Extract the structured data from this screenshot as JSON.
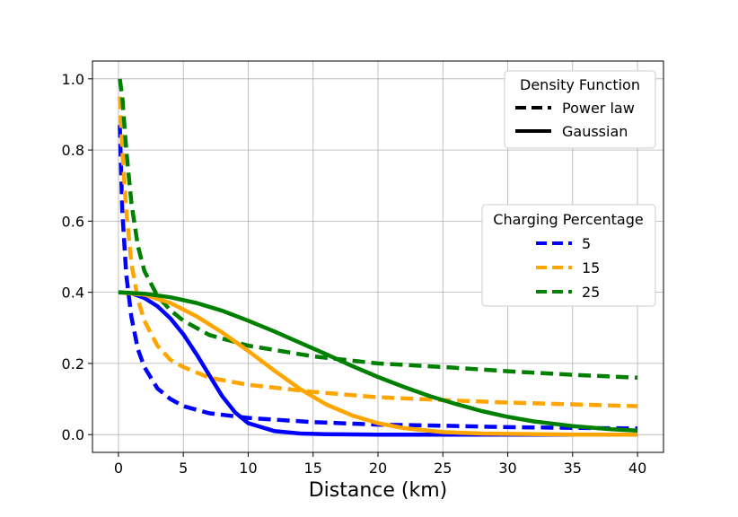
{
  "chart_data": {
    "type": "line",
    "xlabel": "Distance (km)",
    "ylabel": "",
    "xlim": [
      -2,
      42
    ],
    "ylim": [
      -0.05,
      1.05
    ],
    "x_ticks": [
      0,
      5,
      10,
      15,
      20,
      25,
      30,
      35,
      40
    ],
    "y_ticks": [
      0.0,
      0.2,
      0.4,
      0.6,
      0.8,
      1.0
    ],
    "x_tick_labels": [
      "0",
      "5",
      "10",
      "15",
      "20",
      "25",
      "30",
      "35",
      "40"
    ],
    "y_tick_labels": [
      "0.0",
      "0.2",
      "0.4",
      "0.6",
      "0.8",
      "1.0"
    ],
    "grid": true,
    "colors": {
      "5": "#0000ff",
      "15": "#ffa500",
      "25": "#008000"
    },
    "legend_density": {
      "title": "Density Function",
      "placement": "top-right",
      "entries": [
        {
          "label": "Power law",
          "style": "dashed"
        },
        {
          "label": "Gaussian",
          "style": "solid"
        }
      ]
    },
    "legend_charging": {
      "title": "Charging Percentage",
      "placement": "center-right",
      "entries": [
        {
          "label": "5",
          "color": "#0000ff"
        },
        {
          "label": "15",
          "color": "#ffa500"
        },
        {
          "label": "25",
          "color": "#008000"
        }
      ]
    },
    "series": [
      {
        "charging": "5",
        "density": "Power law",
        "x": [
          0.1,
          0.3,
          0.6,
          1,
          1.5,
          2,
          3,
          4,
          5,
          7,
          10,
          15,
          20,
          25,
          30,
          35,
          40
        ],
        "y": [
          0.87,
          0.63,
          0.45,
          0.33,
          0.24,
          0.19,
          0.13,
          0.1,
          0.08,
          0.06,
          0.047,
          0.035,
          0.028,
          0.025,
          0.021,
          0.019,
          0.017
        ]
      },
      {
        "charging": "15",
        "density": "Power law",
        "x": [
          0.1,
          0.3,
          0.6,
          1,
          1.5,
          2,
          3,
          4,
          5,
          7,
          10,
          15,
          20,
          25,
          30,
          35,
          40
        ],
        "y": [
          0.95,
          0.8,
          0.63,
          0.48,
          0.38,
          0.32,
          0.25,
          0.21,
          0.19,
          0.16,
          0.14,
          0.12,
          0.105,
          0.097,
          0.09,
          0.085,
          0.08
        ]
      },
      {
        "charging": "25",
        "density": "Power law",
        "x": [
          0.1,
          0.3,
          0.6,
          1,
          1.5,
          2,
          3,
          4,
          5,
          7,
          10,
          15,
          20,
          25,
          30,
          35,
          40
        ],
        "y": [
          1.0,
          0.95,
          0.8,
          0.65,
          0.53,
          0.46,
          0.39,
          0.35,
          0.32,
          0.28,
          0.25,
          0.22,
          0.2,
          0.19,
          0.178,
          0.168,
          0.16
        ]
      },
      {
        "charging": "5",
        "density": "Gaussian",
        "x": [
          0,
          1,
          2,
          3,
          4,
          5,
          6,
          7,
          8,
          9,
          10,
          12,
          14,
          16,
          20,
          25,
          30,
          35,
          40
        ],
        "y": [
          0.4,
          0.397,
          0.384,
          0.361,
          0.327,
          0.282,
          0.227,
          0.167,
          0.108,
          0.062,
          0.032,
          0.01,
          0.003,
          0.001,
          0.0,
          0.0,
          0.0,
          0.0,
          0.0
        ]
      },
      {
        "charging": "15",
        "density": "Gaussian",
        "x": [
          0,
          2,
          4,
          6,
          8,
          10,
          12,
          14,
          16,
          18,
          20,
          22,
          25,
          28,
          30,
          35,
          40
        ],
        "y": [
          0.4,
          0.393,
          0.37,
          0.333,
          0.287,
          0.235,
          0.18,
          0.128,
          0.085,
          0.054,
          0.032,
          0.018,
          0.007,
          0.003,
          0.002,
          0.0,
          0.0
        ]
      },
      {
        "charging": "25",
        "density": "Gaussian",
        "x": [
          0,
          2,
          4,
          6,
          8,
          10,
          12,
          14,
          16,
          18,
          20,
          22,
          24,
          26,
          28,
          30,
          32,
          35,
          38,
          40
        ],
        "y": [
          0.4,
          0.396,
          0.386,
          0.37,
          0.348,
          0.32,
          0.29,
          0.258,
          0.226,
          0.193,
          0.162,
          0.134,
          0.108,
          0.086,
          0.066,
          0.05,
          0.037,
          0.024,
          0.015,
          0.011
        ]
      }
    ]
  }
}
